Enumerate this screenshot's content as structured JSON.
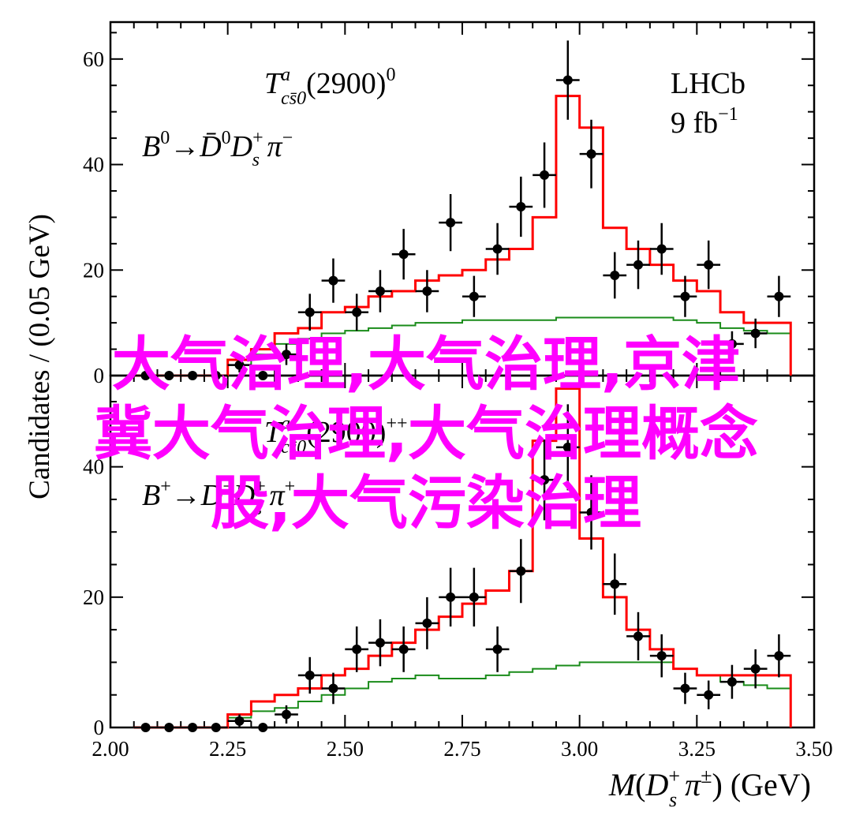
{
  "chart_data": [
    {
      "type": "histogram-with-data-points",
      "panel": "top",
      "annotation_line1": "T^a_{cs̄0}(2900)^0",
      "annotation_line2": "B^0→D̄^0 D_s^+ π^−",
      "experiment": "LHCb",
      "luminosity": "9 fb^−1",
      "ylabel": "Candidates / (0.05 GeV)",
      "ylim": [
        0,
        67
      ],
      "yticks": [
        0,
        20,
        40,
        60
      ],
      "x_bin_centers": [
        2.075,
        2.125,
        2.175,
        2.225,
        2.275,
        2.325,
        2.375,
        2.425,
        2.475,
        2.525,
        2.575,
        2.625,
        2.675,
        2.725,
        2.775,
        2.825,
        2.875,
        2.925,
        2.975,
        3.025,
        3.075,
        3.125,
        3.175,
        3.225,
        3.275,
        3.325,
        3.375,
        3.425
      ],
      "data_y": [
        0,
        0,
        0,
        0,
        2,
        0,
        4,
        12,
        18,
        12,
        16,
        23,
        16,
        29,
        15,
        24,
        32,
        38,
        56,
        42,
        19,
        21,
        24,
        15,
        21,
        6,
        8,
        15
      ],
      "data_yerr": [
        0,
        0,
        0,
        0,
        1.4,
        0,
        2,
        3.5,
        4.2,
        3.5,
        4,
        4.8,
        4,
        5.4,
        3.9,
        4.9,
        5.7,
        6.2,
        7.5,
        6.5,
        4.4,
        4.6,
        4.9,
        3.9,
        4.6,
        2.4,
        2.8,
        3.9
      ],
      "total_fit": [
        0,
        0,
        0,
        0,
        3,
        5,
        8,
        9,
        12,
        13,
        15,
        16,
        18,
        19,
        20,
        22,
        24,
        30,
        53,
        47,
        28,
        24,
        21,
        18,
        16,
        12,
        10,
        10
      ],
      "background_fit": [
        0,
        0,
        0,
        0,
        2,
        4,
        6,
        7,
        8,
        8.5,
        9,
        9.5,
        10,
        10,
        10.5,
        10.5,
        10.5,
        10.5,
        11,
        11,
        11,
        11,
        11,
        10.5,
        10,
        9,
        8.5,
        8
      ]
    },
    {
      "type": "histogram-with-data-points",
      "panel": "bottom",
      "annotation_line1": "T^a_{cs̄0}(2900)^{++}",
      "annotation_line2": "B^+→D^− D_s^+ π^+",
      "xlabel": "M(D_s^+ π^±) (GeV)",
      "xlim": [
        2.0,
        3.5
      ],
      "xticks": [
        "2.00",
        "2.25",
        "2.50",
        "2.75",
        "3.00",
        "3.25",
        "3.50"
      ],
      "ylim": [
        0,
        54
      ],
      "yticks": [
        0,
        20,
        40
      ],
      "x_bin_centers": [
        2.075,
        2.125,
        2.175,
        2.225,
        2.275,
        2.325,
        2.375,
        2.425,
        2.475,
        2.525,
        2.575,
        2.625,
        2.675,
        2.725,
        2.775,
        2.825,
        2.875,
        2.925,
        2.975,
        3.025,
        3.075,
        3.125,
        3.175,
        3.225,
        3.275,
        3.325,
        3.375,
        3.425
      ],
      "data_y": [
        0,
        0,
        0,
        0,
        1,
        0,
        2,
        8,
        6,
        12,
        13,
        12,
        16,
        20,
        20,
        12,
        24,
        38,
        43,
        33,
        22,
        14,
        11,
        6,
        5,
        7,
        9,
        11
      ],
      "data_yerr": [
        0,
        0,
        0,
        0,
        1,
        0,
        1.4,
        2.8,
        2.4,
        3.5,
        3.6,
        3.5,
        4,
        4.5,
        4.5,
        3.5,
        4.9,
        6.2,
        6.6,
        5.7,
        4.7,
        3.7,
        3.3,
        2.4,
        2.2,
        2.6,
        3,
        3.3
      ],
      "total_fit": [
        0,
        0,
        0,
        0,
        2,
        4,
        5,
        6,
        8,
        9,
        11,
        13,
        15,
        17,
        19,
        21,
        24,
        44,
        52,
        29,
        20,
        15,
        12,
        9,
        8,
        8,
        8,
        8
      ],
      "background_fit": [
        0,
        0,
        0,
        0,
        1.5,
        2.5,
        3,
        4,
        5,
        6,
        7,
        7.5,
        8,
        7.5,
        7.5,
        8,
        8.5,
        9,
        9.5,
        10,
        10,
        10,
        10,
        9,
        8,
        7,
        6.5,
        6
      ]
    }
  ],
  "overlay_text": {
    "line1": "大气治理,大气治理,京津",
    "line2": "冀大气治理,大气治理概念",
    "line3": "股,大气污染治理"
  },
  "colors": {
    "data": "#000000",
    "total_fit": "#ff0000",
    "background_fit": "#1a8c1a",
    "overlay": "#ff00ff"
  }
}
